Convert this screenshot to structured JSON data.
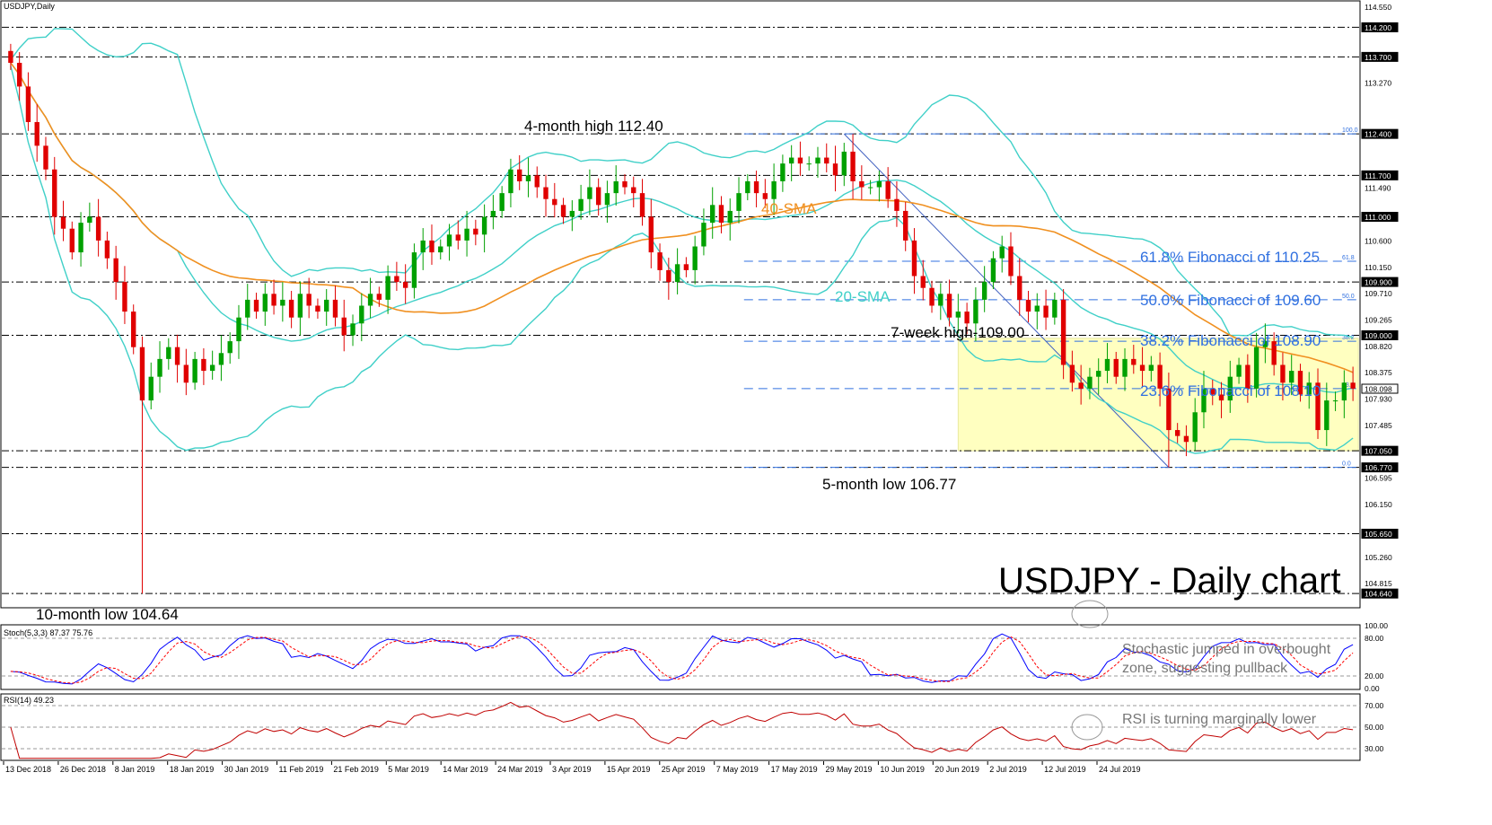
{
  "window": {
    "title": "USDJPY,Daily"
  },
  "chart_data": {
    "type": "candlestick",
    "symbol": "USDJPY",
    "timeframe": "Daily",
    "title": "USDJPY - Daily chart",
    "price_axis": {
      "range": [
        104.4,
        114.6
      ],
      "tick_labels": [
        "114.550",
        "114.200",
        "113.700",
        "113.270",
        "112.400",
        "111.700",
        "111.490",
        "111.000",
        "110.600",
        "110.150",
        "109.900",
        "109.710",
        "109.265",
        "109.000",
        "108.820",
        "108.375",
        "108.098",
        "107.930",
        "107.485",
        "107.050",
        "106.770",
        "106.595",
        "106.150",
        "105.650",
        "105.260",
        "104.815",
        "104.640"
      ]
    },
    "x_axis": {
      "tick_labels": [
        "13 Dec 2018",
        "26 Dec 2018",
        "8 Jan 2019",
        "18 Jan 2019",
        "30 Jan 2019",
        "11 Feb 2019",
        "21 Feb 2019",
        "5 Mar 2019",
        "14 Mar 2019",
        "24 Mar 2019",
        "3 Apr 2019",
        "15 Apr 2019",
        "25 Apr 2019",
        "7 May 2019",
        "17 May 2019",
        "29 May 2019",
        "10 Jun 2019",
        "20 Jun 2019",
        "2 Jul 2019",
        "12 Jul 2019",
        "24 Jul 2019"
      ]
    },
    "horizontal_levels": [
      114.2,
      113.7,
      112.4,
      111.7,
      111.0,
      109.9,
      109.0,
      107.05,
      106.77,
      105.65,
      104.64
    ],
    "fibonacci": {
      "levels": [
        {
          "ratio": "100.0",
          "price": 112.4
        },
        {
          "ratio": "61.8",
          "price": 110.25,
          "label": "61.8% Fibonacci of 110.25"
        },
        {
          "ratio": "50.0",
          "price": 109.6,
          "label": "50.0% Fibonacci of 109.60"
        },
        {
          "ratio": "38.2",
          "price": 108.9,
          "label": "38.2% Fibonacci of 108.90"
        },
        {
          "ratio": "23.6",
          "price": 108.1,
          "label": "23.6% Fibonacci of 108.10"
        },
        {
          "ratio": "0.0",
          "price": 106.77
        }
      ]
    },
    "range_box": {
      "high": 108.95,
      "low": 107.05,
      "color": "#ffffc0"
    },
    "annotations": {
      "high_4m": "4-month high 112.40",
      "low_10m": "10-month low 104.64",
      "low_5m": "5-month low 106.77",
      "high_7w": "7-week high-109.00",
      "sma40": "40-SMA",
      "sma20": "20-SMA"
    },
    "current_price": "108.098",
    "closes": [
      113.6,
      113.2,
      112.6,
      112.2,
      111.8,
      111.0,
      110.8,
      110.4,
      110.9,
      111.0,
      110.6,
      110.3,
      109.9,
      109.4,
      108.8,
      107.9,
      108.3,
      108.6,
      108.8,
      108.5,
      108.2,
      108.6,
      108.4,
      108.5,
      108.7,
      108.9,
      109.3,
      109.6,
      109.4,
      109.7,
      109.5,
      109.6,
      109.3,
      109.7,
      109.5,
      109.4,
      109.6,
      109.3,
      109.0,
      109.2,
      109.5,
      109.7,
      109.6,
      110.0,
      109.9,
      109.8,
      110.4,
      110.6,
      110.4,
      110.5,
      110.7,
      110.6,
      110.8,
      110.7,
      111.0,
      111.1,
      111.4,
      111.8,
      111.6,
      111.7,
      111.5,
      111.3,
      111.2,
      111.0,
      111.1,
      111.3,
      111.5,
      111.2,
      111.4,
      111.6,
      111.5,
      111.4,
      111.0,
      110.4,
      110.1,
      109.9,
      110.2,
      110.1,
      110.5,
      110.9,
      111.2,
      110.9,
      111.1,
      111.4,
      111.6,
      111.4,
      111.3,
      111.6,
      111.9,
      112.0,
      111.9,
      111.9,
      112.0,
      111.9,
      111.7,
      112.1,
      111.6,
      111.5,
      111.5,
      111.6,
      111.3,
      111.1,
      110.6,
      110.0,
      109.8,
      109.5,
      109.7,
      109.3,
      109.4,
      109.2,
      109.6,
      109.9,
      110.3,
      110.5,
      110.0,
      109.6,
      109.4,
      109.5,
      109.3,
      109.6,
      108.5,
      108.2,
      108.1,
      108.3,
      108.4,
      108.6,
      108.3,
      108.6,
      108.5,
      108.4,
      108.5,
      108.1,
      107.4,
      107.3,
      107.2,
      107.7,
      108.1,
      108.0,
      107.9,
      108.3,
      108.5,
      108.1,
      108.8,
      108.9,
      108.5,
      108.2,
      108.4,
      108.0,
      108.2,
      107.4,
      107.9,
      107.9,
      108.2,
      108.1
    ],
    "stochastic": {
      "label": "Stoch(5,3,3) 87.37 75.76",
      "range": [
        0,
        100
      ],
      "tick_labels": [
        "100.00",
        "80.00",
        "20.00",
        "0.00"
      ],
      "k_color": "#0000ff",
      "d_color": "#ff0000",
      "note": "Stochastic jumped in overbought zone, suggesting pullback"
    },
    "rsi": {
      "label": "RSI(14) 49.23",
      "range": [
        20,
        80
      ],
      "tick_labels": [
        "70.00",
        "50.00",
        "30.00"
      ],
      "color": "#c00000",
      "note": "RSI is turning marginally lower"
    },
    "colors": {
      "bull": "#00a000",
      "bear": "#e00000",
      "bollinger": "#40d0c8",
      "sma40": "#f09020",
      "fib": "#3070e0"
    }
  }
}
